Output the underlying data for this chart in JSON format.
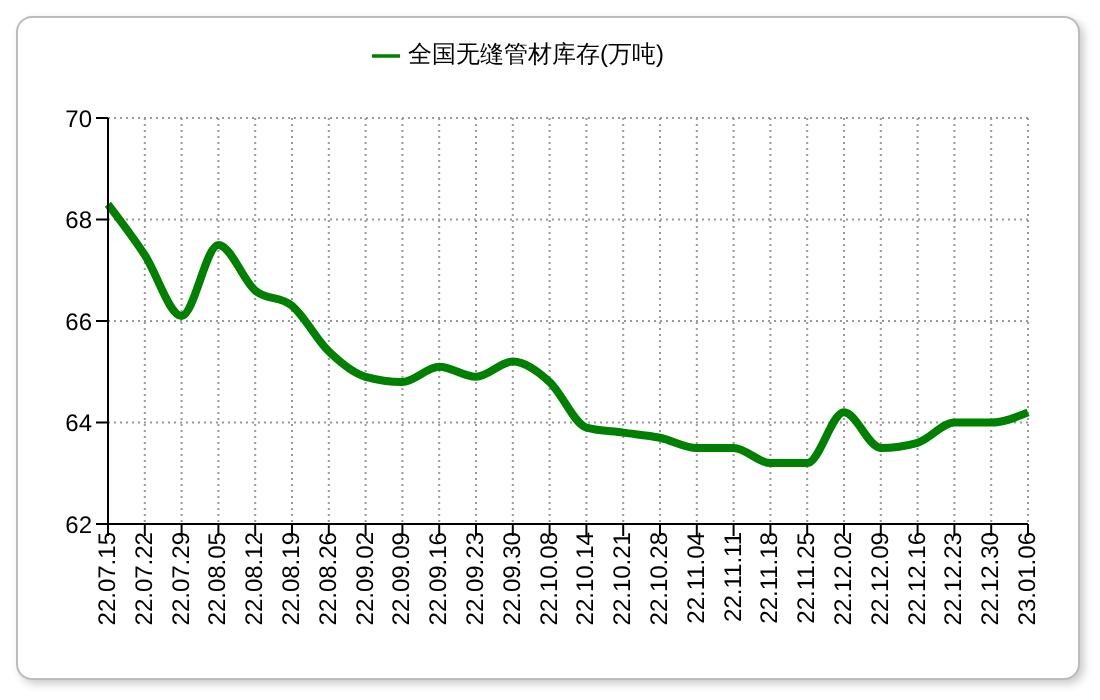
{
  "chart_data": {
    "type": "line",
    "categories": [
      "22.07.15",
      "22.07.22",
      "22.07.29",
      "22.08.05",
      "22.08.12",
      "22.08.19",
      "22.08.26",
      "22.09.02",
      "22.09.09",
      "22.09.16",
      "22.09.23",
      "22.09.30",
      "22.10.08",
      "22.10.14",
      "22.10.21",
      "22.10.28",
      "22.11.04",
      "22.11.11",
      "22.11.18",
      "22.11.25",
      "22.12.02",
      "22.12.09",
      "22.12.16",
      "22.12.23",
      "22.12.30",
      "23.01.06"
    ],
    "series": [
      {
        "name": "全国无缝管材库存(万吨)",
        "color": "#008000",
        "values": [
          68.3,
          67.3,
          66.1,
          67.5,
          66.6,
          66.3,
          65.4,
          64.9,
          64.8,
          65.1,
          64.9,
          65.2,
          64.8,
          63.9,
          63.8,
          63.7,
          63.5,
          63.5,
          63.2,
          63.2,
          64.2,
          63.5,
          63.6,
          64.0,
          64.0,
          64.2
        ]
      }
    ],
    "ylim": [
      62,
      70
    ],
    "yticks": [
      62,
      64,
      66,
      68,
      70
    ],
    "grid": true,
    "legend": "top",
    "marker": "none",
    "line_style": "solid"
  }
}
